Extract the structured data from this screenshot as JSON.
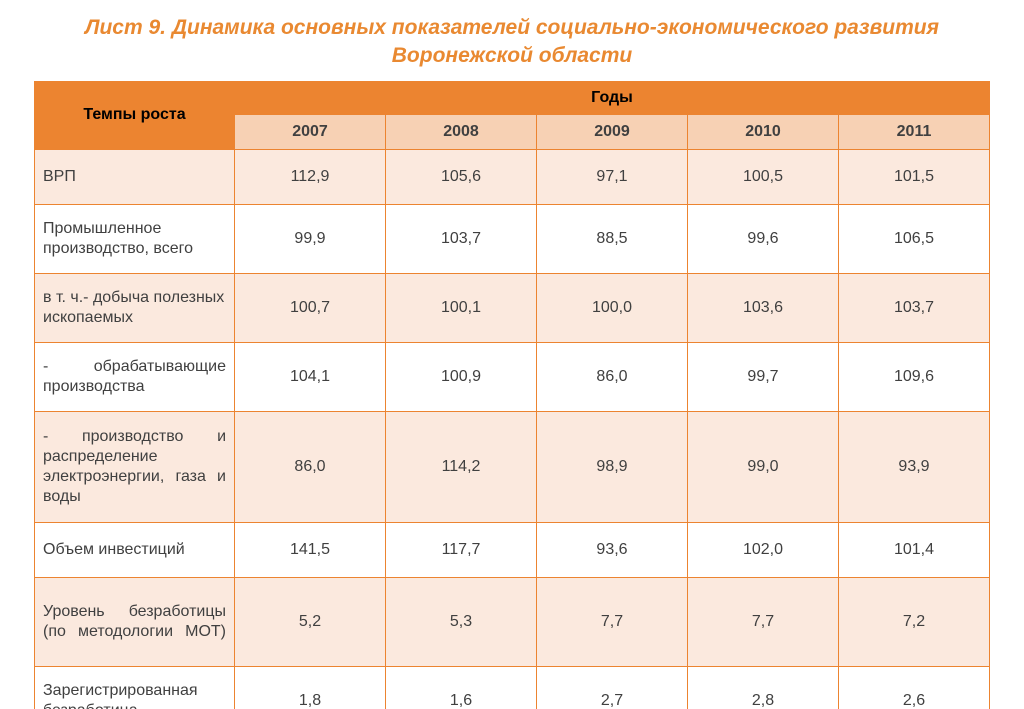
{
  "title_line1": "Лист  9. Динамика основных показателей социально-экономического развития",
  "title_line2": "Воронежской области",
  "title_color": "#e98931",
  "table": {
    "row_header_label": "Темпы роста",
    "years_label": "Годы",
    "years": [
      "2007",
      "2008",
      "2009",
      "2010",
      "2011"
    ],
    "header_bg": "#ec8430",
    "header_text_color": "#000000",
    "subheader_bg": "#f7d1b4",
    "border_color": "#ec8430",
    "row_stripe_a": "#fbe9de",
    "row_stripe_b": "#ffffff",
    "cell_text_color": "#404040",
    "rows": [
      {
        "label": "ВРП",
        "values": [
          "112,9",
          "105,6",
          "97,1",
          "100,5",
          "101,5"
        ],
        "justify": false
      },
      {
        "label": "Промышленное производство, всего",
        "values": [
          "99,9",
          "103,7",
          "88,5",
          "99,6",
          "106,5"
        ],
        "justify": false
      },
      {
        "label": "в т. ч.- добыча полезных ископаемых",
        "values": [
          "100,7",
          "100,1",
          "100,0",
          "103,6",
          "103,7"
        ],
        "justify": false
      },
      {
        "label": "- обрабатывающие производства",
        "values": [
          "104,1",
          "100,9",
          "86,0",
          "99,7",
          "109,6"
        ],
        "justify": true
      },
      {
        "label": "- производство и распределение электроэнергии, газа и воды",
        "values": [
          "86,0",
          "114,2",
          "98,9",
          "99,0",
          "93,9"
        ],
        "justify": true
      },
      {
        "label": "Объем инвестиций",
        "values": [
          "141,5",
          "117,7",
          "93,6",
          "102,0",
          "101,4"
        ],
        "justify": false
      },
      {
        "label": "Уровень безработицы (по методологии МОТ)",
        "values": [
          "5,2",
          "5,3",
          "7,7",
          "7,7",
          "7,2"
        ],
        "justify": true
      },
      {
        "label": "Зарегистрированная безработица",
        "values": [
          "1,8",
          "1,6",
          "2,7",
          "2,8",
          "2,6"
        ],
        "justify": false
      }
    ]
  }
}
